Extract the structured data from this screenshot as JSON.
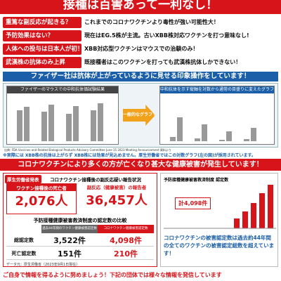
{
  "header": {
    "title": "接種は百害あって一利なし！"
  },
  "claims": [
    {
      "label": "重篤な副反応が起きる？",
      "text": "これまでのコロナワクチンより毒性が強い可能性大！"
    },
    {
      "label": "予防効果はない？",
      "text": "現在はEG.5株が主流。古いXBB株対応ワクチンを打つ意味なし!"
    },
    {
      "label": "人体への投与は日本人が初！",
      "text": "XBB対応型ワクチンはマウスでの治験のみ！"
    },
    {
      "label": "武漢株の抗体のみ上昇",
      "text": "既接種者はこのワクチンを打っても武漢株抗体しかできない！"
    }
  ],
  "manipulation": {
    "banner": "ファイザー社は抗体が上がっているように見せる印象操作をしています！",
    "left_title": "ファイザーのマウスでの中和抗体価試験結果",
    "right_title": "中和抗体を示す縦軸を対数から通常の目盛りに変えたグラフ",
    "arrow": "一般的なグラフでは",
    "source": "出典: FDA Vaccines and Related Biological Products Advisory Committee June 15 2023 Meeting Announcement 資料より",
    "note": "※実際には XBB株の抗体は上がらず XBB株には効果が見込めません。厚生労働省ではこの対数グラフ(左の図)が採用されています。"
  },
  "damage": {
    "banner": "コロナワクチンにより多くの方が亡くなり甚大な健康被害が発生しています！",
    "badge": "厚生労働省発表",
    "subtitle": "コロナワクチン接種後の副反応疑い報告状況",
    "deaths_label": "ワクチン接種後の死亡者",
    "deaths": "2,076人",
    "reports_label": "副反応（健康被害）の報告者",
    "reports": "36,457人",
    "compare_title": "予防接種健康被害救済制度の認定数の比較",
    "table": {
      "headers": [
        "過去44年間のワクチン健康被害認定数",
        "コロナワクチン健康被害認定数"
      ],
      "rows": [
        [
          "総認定数",
          "3,522件",
          "4,098件"
        ],
        [
          "死亡認定数",
          "151件",
          "210件"
        ]
      ]
    },
    "data_source": "データ元：厚生労働省（2023年9月1日現在）",
    "chart_title": "予防接種健康被害救済制度 認定数",
    "chart_total": "計4,098件",
    "conclusion": "コロナワクチンの被害認定数は過去約44年間の全てのワクチンの被害認定総数を超えています！"
  },
  "footer": "ご自身で情報を得るように努めましょう！下記の団体では様々な情報を発信しています"
}
